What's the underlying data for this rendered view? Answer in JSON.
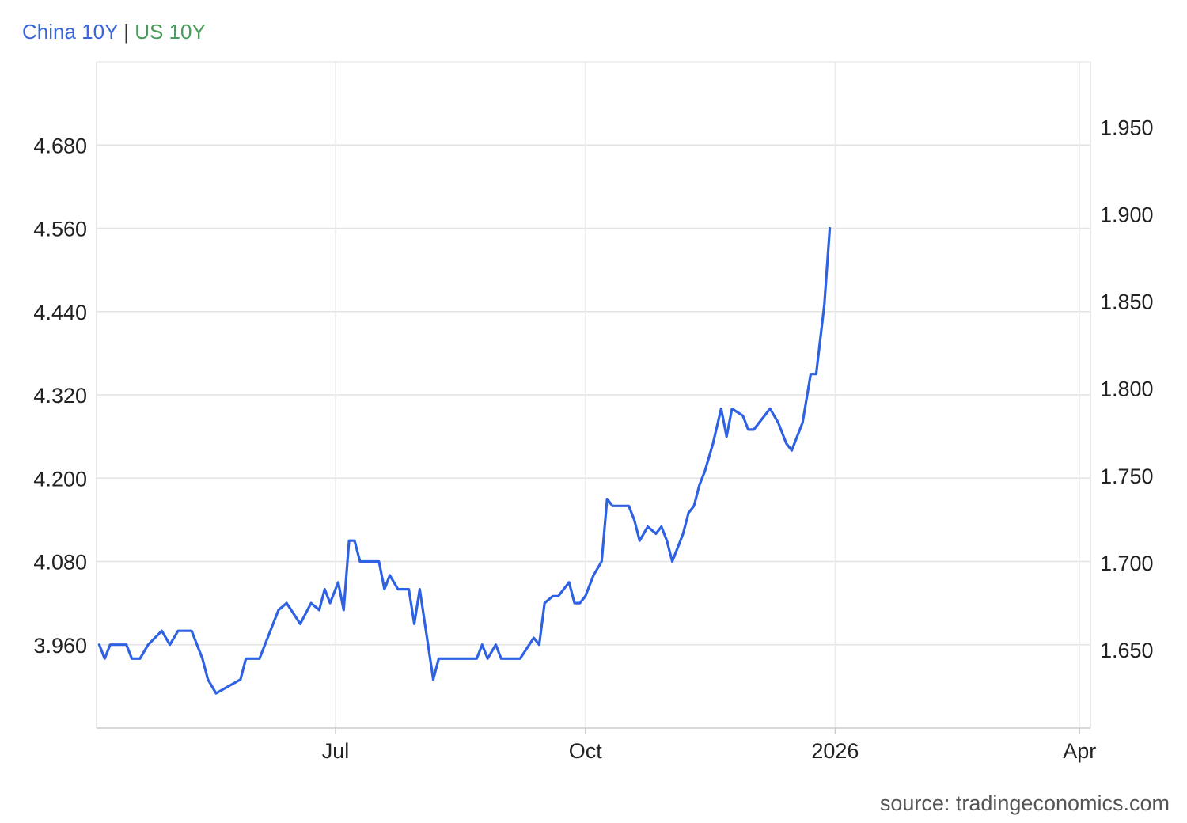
{
  "chart_data": {
    "type": "line",
    "title": "",
    "legend_position": "top-left",
    "grid": true,
    "x_range": [
      "2025-04-04",
      "2026-04-05"
    ],
    "x_ticks": [
      {
        "label": "Jul",
        "date": "2025-07-01"
      },
      {
        "label": "Oct",
        "date": "2025-10-01"
      },
      {
        "label": "2026",
        "date": "2026-01-01"
      },
      {
        "label": "Apr",
        "date": "2026-04-01"
      }
    ],
    "y_left": {
      "range": [
        3.84,
        4.8
      ],
      "ticks": [
        "3.960",
        "4.080",
        "4.200",
        "4.320",
        "4.440",
        "4.560",
        "4.680"
      ]
    },
    "y_right": {
      "range": [
        1.605,
        1.9875
      ],
      "ticks": [
        "1.650",
        "1.700",
        "1.750",
        "1.800",
        "1.850",
        "1.900",
        "1.950"
      ]
    },
    "series": [
      {
        "name": "China 10Y",
        "color": "#2f62e3",
        "axis": "left",
        "points": [
          [
            "2025-04-05",
            3.96
          ],
          [
            "2025-04-07",
            3.94
          ],
          [
            "2025-04-09",
            3.96
          ],
          [
            "2025-04-15",
            3.96
          ],
          [
            "2025-04-17",
            3.94
          ],
          [
            "2025-04-20",
            3.94
          ],
          [
            "2025-04-23",
            3.96
          ],
          [
            "2025-04-28",
            3.98
          ],
          [
            "2025-05-01",
            3.96
          ],
          [
            "2025-05-04",
            3.98
          ],
          [
            "2025-05-09",
            3.98
          ],
          [
            "2025-05-13",
            3.94
          ],
          [
            "2025-05-15",
            3.91
          ],
          [
            "2025-05-18",
            3.89
          ],
          [
            "2025-05-27",
            3.91
          ],
          [
            "2025-05-29",
            3.94
          ],
          [
            "2025-06-01",
            3.94
          ],
          [
            "2025-06-03",
            3.94
          ],
          [
            "2025-06-10",
            4.01
          ],
          [
            "2025-06-13",
            4.02
          ],
          [
            "2025-06-18",
            3.99
          ],
          [
            "2025-06-22",
            4.02
          ],
          [
            "2025-06-25",
            4.01
          ],
          [
            "2025-06-27",
            4.04
          ],
          [
            "2025-06-29",
            4.02
          ],
          [
            "2025-07-02",
            4.05
          ],
          [
            "2025-07-04",
            4.01
          ],
          [
            "2025-07-06",
            4.11
          ],
          [
            "2025-07-08",
            4.11
          ],
          [
            "2025-07-10",
            4.08
          ],
          [
            "2025-07-17",
            4.08
          ],
          [
            "2025-07-19",
            4.04
          ],
          [
            "2025-07-21",
            4.06
          ],
          [
            "2025-07-24",
            4.04
          ],
          [
            "2025-07-28",
            4.04
          ],
          [
            "2025-07-30",
            3.99
          ],
          [
            "2025-08-01",
            4.04
          ],
          [
            "2025-08-06",
            3.91
          ],
          [
            "2025-08-08",
            3.94
          ],
          [
            "2025-08-12",
            3.94
          ],
          [
            "2025-08-22",
            3.94
          ],
          [
            "2025-08-24",
            3.96
          ],
          [
            "2025-08-26",
            3.94
          ],
          [
            "2025-08-29",
            3.96
          ],
          [
            "2025-08-31",
            3.94
          ],
          [
            "2025-09-07",
            3.94
          ],
          [
            "2025-09-12",
            3.97
          ],
          [
            "2025-09-14",
            3.96
          ],
          [
            "2025-09-16",
            4.02
          ],
          [
            "2025-09-19",
            4.03
          ],
          [
            "2025-09-21",
            4.03
          ],
          [
            "2025-09-23",
            4.04
          ],
          [
            "2025-09-25",
            4.05
          ],
          [
            "2025-09-27",
            4.02
          ],
          [
            "2025-09-29",
            4.02
          ],
          [
            "2025-10-01",
            4.03
          ],
          [
            "2025-10-04",
            4.06
          ],
          [
            "2025-10-07",
            4.08
          ],
          [
            "2025-10-09",
            4.17
          ],
          [
            "2025-10-11",
            4.16
          ],
          [
            "2025-10-13",
            4.16
          ],
          [
            "2025-10-17",
            4.16
          ],
          [
            "2025-10-19",
            4.14
          ],
          [
            "2025-10-21",
            4.11
          ],
          [
            "2025-10-24",
            4.13
          ],
          [
            "2025-10-27",
            4.12
          ],
          [
            "2025-10-29",
            4.13
          ],
          [
            "2025-10-31",
            4.11
          ],
          [
            "2025-11-02",
            4.08
          ],
          [
            "2025-11-04",
            4.1
          ],
          [
            "2025-11-06",
            4.12
          ],
          [
            "2025-11-08",
            4.15
          ],
          [
            "2025-11-10",
            4.16
          ],
          [
            "2025-11-12",
            4.19
          ],
          [
            "2025-11-14",
            4.21
          ],
          [
            "2025-11-17",
            4.25
          ],
          [
            "2025-11-20",
            4.3
          ],
          [
            "2025-11-22",
            4.26
          ],
          [
            "2025-11-24",
            4.3
          ],
          [
            "2025-11-28",
            4.29
          ],
          [
            "2025-11-30",
            4.27
          ],
          [
            "2025-12-02",
            4.27
          ],
          [
            "2025-12-04",
            4.28
          ],
          [
            "2025-12-08",
            4.3
          ],
          [
            "2025-12-11",
            4.28
          ],
          [
            "2025-12-14",
            4.25
          ],
          [
            "2025-12-16",
            4.24
          ],
          [
            "2025-12-20",
            4.28
          ],
          [
            "2025-12-23",
            4.35
          ],
          [
            "2025-12-25",
            4.35
          ],
          [
            "2025-12-28",
            4.45
          ],
          [
            "2025-12-30",
            4.56
          ]
        ]
      },
      {
        "name": "US 10Y",
        "color": "#4a9a5c",
        "axis": "right",
        "points": []
      }
    ]
  },
  "legend": {
    "china_label": "China 10Y",
    "separator": "|",
    "us_label": "US 10Y"
  },
  "source": "source: tradingeconomics.com"
}
